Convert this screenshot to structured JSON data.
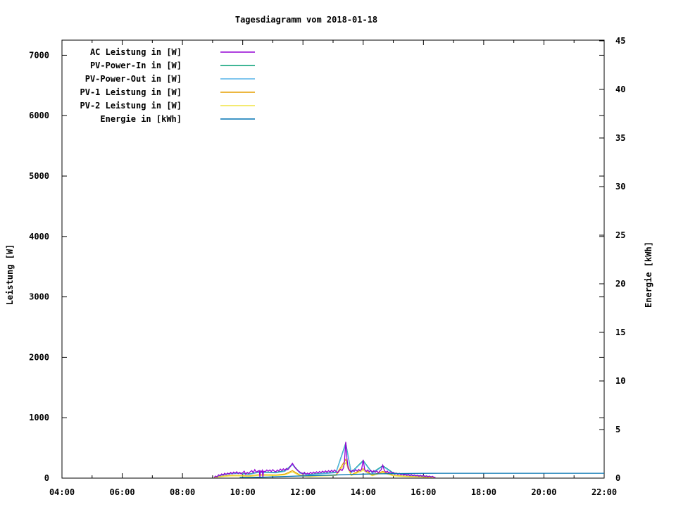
{
  "chart_data": {
    "type": "line",
    "title": "Tagesdiagramm vom 2018-01-18",
    "grid": false,
    "legend_position": "top-left",
    "x_axis": {
      "min": 4,
      "max": 22,
      "major_ticks": [
        {
          "value": 4,
          "label": "04:00"
        },
        {
          "value": 6,
          "label": "06:00"
        },
        {
          "value": 8,
          "label": "08:00"
        },
        {
          "value": 10,
          "label": "10:00"
        },
        {
          "value": 12,
          "label": "12:00"
        },
        {
          "value": 14,
          "label": "14:00"
        },
        {
          "value": 16,
          "label": "16:00"
        },
        {
          "value": 18,
          "label": "18:00"
        },
        {
          "value": 20,
          "label": "20:00"
        },
        {
          "value": 22,
          "label": "22:00"
        }
      ],
      "minor_ticks": [
        5,
        7,
        9,
        11,
        13,
        15,
        17,
        19,
        21
      ]
    },
    "y_axis": {
      "label": "Leistung [W]",
      "min": 0,
      "max": 7250,
      "ticks": [
        0,
        1000,
        2000,
        3000,
        4000,
        5000,
        6000,
        7000
      ]
    },
    "y2_axis": {
      "label": "Energie [kWh]",
      "min": 0,
      "max": 45.07,
      "ticks": [
        0,
        5,
        10,
        15,
        20,
        25,
        30,
        35,
        40,
        45
      ]
    },
    "series": [
      {
        "name": "AC Leistung in [W]",
        "color": "#9400d3",
        "axis": "y1",
        "points": [
          [
            9.05,
            5
          ],
          [
            9.1,
            35
          ],
          [
            9.15,
            20
          ],
          [
            9.2,
            55
          ],
          [
            9.25,
            40
          ],
          [
            9.3,
            70
          ],
          [
            9.35,
            50
          ],
          [
            9.4,
            80
          ],
          [
            9.45,
            60
          ],
          [
            9.5,
            85
          ],
          [
            9.55,
            65
          ],
          [
            9.6,
            95
          ],
          [
            9.65,
            70
          ],
          [
            9.7,
            100
          ],
          [
            9.75,
            80
          ],
          [
            9.8,
            105
          ],
          [
            9.85,
            75
          ],
          [
            9.9,
            95
          ],
          [
            9.95,
            70
          ],
          [
            10,
            90
          ],
          [
            10.05,
            115
          ],
          [
            10.1,
            65
          ],
          [
            10.15,
            95
          ],
          [
            10.2,
            75
          ],
          [
            10.25,
            105
          ],
          [
            10.3,
            125
          ],
          [
            10.35,
            90
          ],
          [
            10.4,
            140
          ],
          [
            10.45,
            100
          ],
          [
            10.5,
            115
          ],
          [
            10.55,
            125
          ],
          [
            10.57,
            5
          ],
          [
            10.59,
            120
          ],
          [
            10.62,
            105
          ],
          [
            10.65,
            130
          ],
          [
            10.67,
            8
          ],
          [
            10.69,
            115
          ],
          [
            10.75,
            110
          ],
          [
            10.8,
            135
          ],
          [
            10.85,
            115
          ],
          [
            10.9,
            135
          ],
          [
            10.95,
            110
          ],
          [
            11,
            140
          ],
          [
            11.05,
            115
          ],
          [
            11.1,
            105
          ],
          [
            11.15,
            135
          ],
          [
            11.2,
            115
          ],
          [
            11.25,
            150
          ],
          [
            11.3,
            125
          ],
          [
            11.35,
            155
          ],
          [
            11.4,
            130
          ],
          [
            11.45,
            160
          ],
          [
            11.5,
            140
          ],
          [
            11.55,
            170
          ],
          [
            11.6,
            210
          ],
          [
            11.65,
            245
          ],
          [
            11.7,
            205
          ],
          [
            11.75,
            165
          ],
          [
            11.8,
            140
          ],
          [
            11.85,
            120
          ],
          [
            11.9,
            100
          ],
          [
            11.95,
            85
          ],
          [
            12,
            70
          ],
          [
            12.05,
            95
          ],
          [
            12.1,
            60
          ],
          [
            12.15,
            85
          ],
          [
            12.2,
            65
          ],
          [
            12.25,
            95
          ],
          [
            12.3,
            75
          ],
          [
            12.35,
            100
          ],
          [
            12.4,
            80
          ],
          [
            12.45,
            105
          ],
          [
            12.5,
            85
          ],
          [
            12.55,
            110
          ],
          [
            12.6,
            90
          ],
          [
            12.65,
            115
          ],
          [
            12.7,
            95
          ],
          [
            12.75,
            120
          ],
          [
            12.8,
            95
          ],
          [
            12.85,
            125
          ],
          [
            12.9,
            100
          ],
          [
            12.95,
            130
          ],
          [
            13,
            105
          ],
          [
            13.05,
            135
          ],
          [
            13.1,
            110
          ],
          [
            13.15,
            90
          ],
          [
            13.2,
            120
          ],
          [
            13.25,
            145
          ],
          [
            13.3,
            125
          ],
          [
            13.35,
            175
          ],
          [
            13.38,
            300
          ],
          [
            13.42,
            600
          ],
          [
            13.46,
            330
          ],
          [
            13.5,
            160
          ],
          [
            13.55,
            125
          ],
          [
            13.6,
            105
          ],
          [
            13.65,
            130
          ],
          [
            13.7,
            110
          ],
          [
            13.75,
            140
          ],
          [
            13.8,
            115
          ],
          [
            13.85,
            145
          ],
          [
            13.9,
            120
          ],
          [
            13.95,
            150
          ],
          [
            14,
            305
          ],
          [
            14.05,
            140
          ],
          [
            14.1,
            110
          ],
          [
            14.15,
            135
          ],
          [
            14.2,
            105
          ],
          [
            14.25,
            130
          ],
          [
            14.3,
            100
          ],
          [
            14.35,
            125
          ],
          [
            14.4,
            95
          ],
          [
            14.45,
            120
          ],
          [
            14.5,
            90
          ],
          [
            14.55,
            115
          ],
          [
            14.6,
            140
          ],
          [
            14.65,
            215
          ],
          [
            14.7,
            130
          ],
          [
            14.75,
            95
          ],
          [
            14.8,
            115
          ],
          [
            14.85,
            85
          ],
          [
            14.9,
            105
          ],
          [
            14.95,
            75
          ],
          [
            15,
            95
          ],
          [
            15.05,
            65
          ],
          [
            15.1,
            85
          ],
          [
            15.15,
            60
          ],
          [
            15.2,
            80
          ],
          [
            15.25,
            55
          ],
          [
            15.3,
            75
          ],
          [
            15.35,
            50
          ],
          [
            15.4,
            70
          ],
          [
            15.45,
            45
          ],
          [
            15.5,
            65
          ],
          [
            15.55,
            40
          ],
          [
            15.6,
            60
          ],
          [
            15.65,
            38
          ],
          [
            15.7,
            55
          ],
          [
            15.75,
            35
          ],
          [
            15.8,
            50
          ],
          [
            15.85,
            30
          ],
          [
            15.9,
            48
          ],
          [
            15.95,
            28
          ],
          [
            16,
            45
          ],
          [
            16.05,
            25
          ],
          [
            16.1,
            40
          ],
          [
            16.15,
            22
          ],
          [
            16.2,
            35
          ],
          [
            16.25,
            18
          ],
          [
            16.3,
            30
          ],
          [
            16.35,
            12
          ],
          [
            16.4,
            8
          ]
        ]
      },
      {
        "name": "PV-Power-In in [W]",
        "color": "#009e73",
        "axis": "y1",
        "points": [
          [
            9.05,
            0
          ],
          [
            9.3,
            55
          ],
          [
            9.6,
            80
          ],
          [
            9.9,
            85
          ],
          [
            10.2,
            65
          ],
          [
            10.5,
            100
          ],
          [
            10.8,
            100
          ],
          [
            11.1,
            95
          ],
          [
            11.4,
            120
          ],
          [
            11.65,
            230
          ],
          [
            11.9,
            90
          ],
          [
            12.2,
            60
          ],
          [
            12.5,
            75
          ],
          [
            12.8,
            85
          ],
          [
            13.1,
            100
          ],
          [
            13.42,
            580
          ],
          [
            13.6,
            95
          ],
          [
            14,
            290
          ],
          [
            14.3,
            90
          ],
          [
            14.65,
            205
          ],
          [
            15,
            85
          ],
          [
            15.3,
            65
          ],
          [
            15.6,
            50
          ],
          [
            15.9,
            40
          ],
          [
            16.2,
            28
          ],
          [
            16.4,
            5
          ]
        ]
      },
      {
        "name": "PV-Power-Out in [W]",
        "color": "#56b4e9",
        "axis": "y1",
        "points": [
          [
            9.05,
            0
          ],
          [
            9.3,
            48
          ],
          [
            9.6,
            72
          ],
          [
            9.9,
            78
          ],
          [
            10.2,
            58
          ],
          [
            10.5,
            92
          ],
          [
            10.8,
            92
          ],
          [
            11.1,
            88
          ],
          [
            11.4,
            112
          ],
          [
            11.65,
            220
          ],
          [
            11.9,
            82
          ],
          [
            12.2,
            52
          ],
          [
            12.5,
            68
          ],
          [
            12.8,
            78
          ],
          [
            13.1,
            92
          ],
          [
            13.42,
            565
          ],
          [
            13.6,
            88
          ],
          [
            14,
            280
          ],
          [
            14.3,
            82
          ],
          [
            14.65,
            195
          ],
          [
            15,
            78
          ],
          [
            15.3,
            58
          ],
          [
            15.6,
            44
          ],
          [
            15.9,
            34
          ],
          [
            16.2,
            22
          ],
          [
            16.4,
            3
          ]
        ]
      },
      {
        "name": "PV-1 Leistung in [W]",
        "color": "#e69f00",
        "axis": "y1",
        "points": [
          [
            9.05,
            0
          ],
          [
            9.3,
            30
          ],
          [
            9.6,
            44
          ],
          [
            9.9,
            47
          ],
          [
            10.2,
            35
          ],
          [
            10.5,
            55
          ],
          [
            10.8,
            55
          ],
          [
            11.1,
            52
          ],
          [
            11.4,
            66
          ],
          [
            11.65,
            125
          ],
          [
            11.9,
            50
          ],
          [
            12.2,
            32
          ],
          [
            12.5,
            42
          ],
          [
            12.8,
            47
          ],
          [
            13.1,
            55
          ],
          [
            13.42,
            310
          ],
          [
            13.6,
            52
          ],
          [
            14,
            155
          ],
          [
            14.3,
            50
          ],
          [
            14.65,
            110
          ],
          [
            15,
            47
          ],
          [
            15.3,
            35
          ],
          [
            15.6,
            27
          ],
          [
            15.9,
            21
          ],
          [
            16.2,
            15
          ],
          [
            16.4,
            2
          ]
        ]
      },
      {
        "name": "PV-2 Leistung in [W]",
        "color": "#f0e442",
        "axis": "y1",
        "points": [
          [
            9.05,
            0
          ],
          [
            9.3,
            25
          ],
          [
            9.6,
            36
          ],
          [
            9.9,
            38
          ],
          [
            10.2,
            28
          ],
          [
            10.5,
            45
          ],
          [
            10.8,
            45
          ],
          [
            11.1,
            43
          ],
          [
            11.4,
            54
          ],
          [
            11.65,
            102
          ],
          [
            11.9,
            40
          ],
          [
            12.2,
            26
          ],
          [
            12.5,
            34
          ],
          [
            12.8,
            38
          ],
          [
            13.1,
            45
          ],
          [
            13.42,
            255
          ],
          [
            13.6,
            43
          ],
          [
            14,
            128
          ],
          [
            14.3,
            40
          ],
          [
            14.65,
            90
          ],
          [
            15,
            38
          ],
          [
            15.3,
            28
          ],
          [
            15.6,
            22
          ],
          [
            15.9,
            17
          ],
          [
            16.2,
            11
          ],
          [
            16.4,
            2
          ]
        ]
      },
      {
        "name": "Energie in [kWh]",
        "color": "#0072b2",
        "axis": "y2",
        "points": [
          [
            9.9,
            0.01
          ],
          [
            10.25,
            0.05
          ],
          [
            10.5,
            0.09
          ],
          [
            11,
            0.13
          ],
          [
            11.5,
            0.18
          ],
          [
            12,
            0.23
          ],
          [
            12.5,
            0.27
          ],
          [
            13,
            0.31
          ],
          [
            13.5,
            0.37
          ],
          [
            14,
            0.41
          ],
          [
            14.5,
            0.44
          ],
          [
            15,
            0.46
          ],
          [
            15.5,
            0.48
          ],
          [
            16,
            0.49
          ],
          [
            16.5,
            0.5
          ],
          [
            22,
            0.5
          ]
        ]
      }
    ]
  }
}
